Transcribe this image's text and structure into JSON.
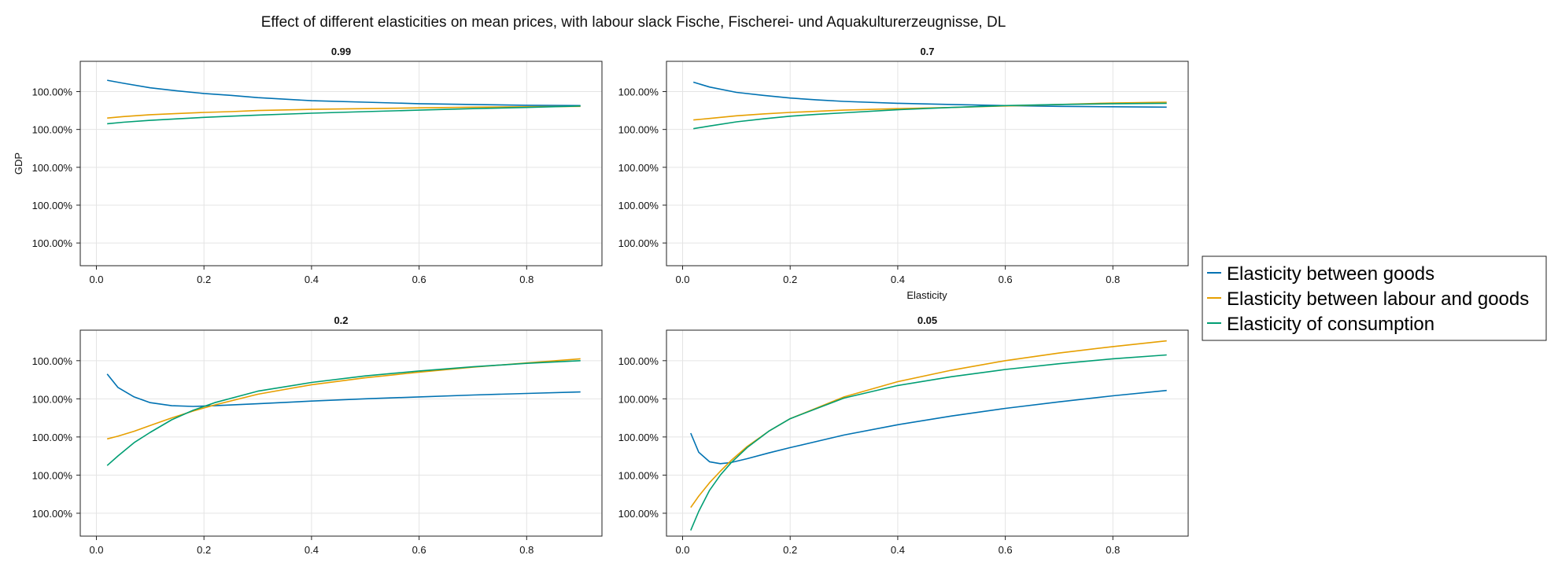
{
  "figure": {
    "title": "Effect of different elasticities on mean prices, with labour slack Fische, Fischerei- und Aquakulturerzeugnisse, DL"
  },
  "legend": {
    "position": "right",
    "entries": [
      {
        "label": "Elasticity between goods",
        "color": "#0072B2"
      },
      {
        "label": "Elasticity between labour and goods",
        "color": "#E69F00"
      },
      {
        "label": "Elasticity of consumption",
        "color": "#009E73"
      }
    ]
  },
  "chart_data": [
    {
      "type": "line",
      "title": "0.99",
      "xlabel": "",
      "ylabel": "GDP",
      "xlim": [
        -0.03,
        0.94
      ],
      "ylim": [
        0.4,
        5.8
      ],
      "xticks": [
        "0.0",
        "0.2",
        "0.4",
        "0.6",
        "0.8"
      ],
      "yticks": [
        "100.00%",
        "100.00%",
        "100.00%",
        "100.00%",
        "100.00%"
      ],
      "grid": true,
      "x": [
        0.02,
        0.05,
        0.1,
        0.15,
        0.2,
        0.25,
        0.3,
        0.4,
        0.5,
        0.6,
        0.7,
        0.8,
        0.9
      ],
      "series": [
        {
          "name": "Elasticity between goods",
          "values": [
            5.3,
            5.22,
            5.1,
            5.02,
            4.95,
            4.9,
            4.84,
            4.76,
            4.72,
            4.68,
            4.66,
            4.64,
            4.63
          ]
        },
        {
          "name": "Elasticity between labour and goods",
          "values": [
            4.3,
            4.34,
            4.39,
            4.42,
            4.45,
            4.47,
            4.5,
            4.53,
            4.55,
            4.57,
            4.59,
            4.6,
            4.61
          ]
        },
        {
          "name": "Elasticity of consumption",
          "values": [
            4.15,
            4.19,
            4.24,
            4.28,
            4.32,
            4.35,
            4.38,
            4.43,
            4.47,
            4.51,
            4.55,
            4.58,
            4.62
          ]
        }
      ]
    },
    {
      "type": "line",
      "title": "0.7",
      "xlabel": "Elasticity",
      "ylabel": "",
      "xlim": [
        -0.03,
        0.94
      ],
      "ylim": [
        0.4,
        5.8
      ],
      "xticks": [
        "0.0",
        "0.2",
        "0.4",
        "0.6",
        "0.8"
      ],
      "yticks": [
        "100.00%",
        "100.00%",
        "100.00%",
        "100.00%",
        "100.00%"
      ],
      "grid": true,
      "x": [
        0.02,
        0.05,
        0.1,
        0.15,
        0.2,
        0.25,
        0.3,
        0.4,
        0.5,
        0.6,
        0.7,
        0.8,
        0.9
      ],
      "series": [
        {
          "name": "Elasticity between goods",
          "values": [
            5.25,
            5.12,
            4.98,
            4.9,
            4.83,
            4.78,
            4.74,
            4.69,
            4.66,
            4.63,
            4.61,
            4.6,
            4.59
          ]
        },
        {
          "name": "Elasticity between labour and goods",
          "values": [
            4.25,
            4.29,
            4.36,
            4.41,
            4.45,
            4.48,
            4.51,
            4.55,
            4.58,
            4.62,
            4.66,
            4.7,
            4.72
          ]
        },
        {
          "name": "Elasticity of consumption",
          "values": [
            4.02,
            4.09,
            4.2,
            4.28,
            4.35,
            4.4,
            4.44,
            4.52,
            4.58,
            4.63,
            4.66,
            4.68,
            4.69
          ]
        }
      ]
    },
    {
      "type": "line",
      "title": "0.2",
      "xlabel": "",
      "ylabel": "",
      "xlim": [
        -0.03,
        0.94
      ],
      "ylim": [
        0.4,
        5.8
      ],
      "xticks": [
        "0.0",
        "0.2",
        "0.4",
        "0.6",
        "0.8"
      ],
      "yticks": [
        "100.00%",
        "100.00%",
        "100.00%",
        "100.00%",
        "100.00%"
      ],
      "grid": true,
      "x": [
        0.02,
        0.04,
        0.07,
        0.1,
        0.14,
        0.18,
        0.22,
        0.3,
        0.4,
        0.5,
        0.6,
        0.7,
        0.8,
        0.9
      ],
      "series": [
        {
          "name": "Elasticity between goods",
          "values": [
            4.65,
            4.3,
            4.05,
            3.9,
            3.82,
            3.8,
            3.82,
            3.87,
            3.94,
            4.0,
            4.05,
            4.1,
            4.14,
            4.18
          ]
        },
        {
          "name": "Elasticity between labour and goods",
          "values": [
            2.95,
            3.02,
            3.15,
            3.3,
            3.5,
            3.68,
            3.84,
            4.12,
            4.37,
            4.55,
            4.7,
            4.83,
            4.94,
            5.05
          ]
        },
        {
          "name": "Elasticity of consumption",
          "values": [
            2.25,
            2.5,
            2.85,
            3.12,
            3.45,
            3.7,
            3.9,
            4.2,
            4.43,
            4.6,
            4.73,
            4.84,
            4.93,
            5.0
          ]
        }
      ]
    },
    {
      "type": "line",
      "title": "0.05",
      "xlabel": "",
      "ylabel": "",
      "xlim": [
        -0.03,
        0.94
      ],
      "ylim": [
        0.4,
        5.8
      ],
      "xticks": [
        "0.0",
        "0.2",
        "0.4",
        "0.6",
        "0.8"
      ],
      "yticks": [
        "100.00%",
        "100.00%",
        "100.00%",
        "100.00%",
        "100.00%"
      ],
      "grid": true,
      "x": [
        0.015,
        0.03,
        0.05,
        0.07,
        0.09,
        0.12,
        0.16,
        0.2,
        0.3,
        0.4,
        0.5,
        0.6,
        0.7,
        0.8,
        0.9
      ],
      "series": [
        {
          "name": "Elasticity between goods",
          "values": [
            3.1,
            2.6,
            2.35,
            2.3,
            2.33,
            2.43,
            2.58,
            2.72,
            3.05,
            3.32,
            3.55,
            3.75,
            3.92,
            4.08,
            4.22
          ]
        },
        {
          "name": "Elasticity between labour and goods",
          "values": [
            1.15,
            1.45,
            1.8,
            2.1,
            2.38,
            2.75,
            3.15,
            3.48,
            4.05,
            4.45,
            4.75,
            5.0,
            5.2,
            5.37,
            5.52
          ]
        },
        {
          "name": "Elasticity of consumption",
          "values": [
            0.55,
            1.05,
            1.6,
            2.0,
            2.32,
            2.72,
            3.15,
            3.48,
            4.02,
            4.35,
            4.58,
            4.77,
            4.92,
            5.05,
            5.15
          ]
        }
      ]
    }
  ]
}
